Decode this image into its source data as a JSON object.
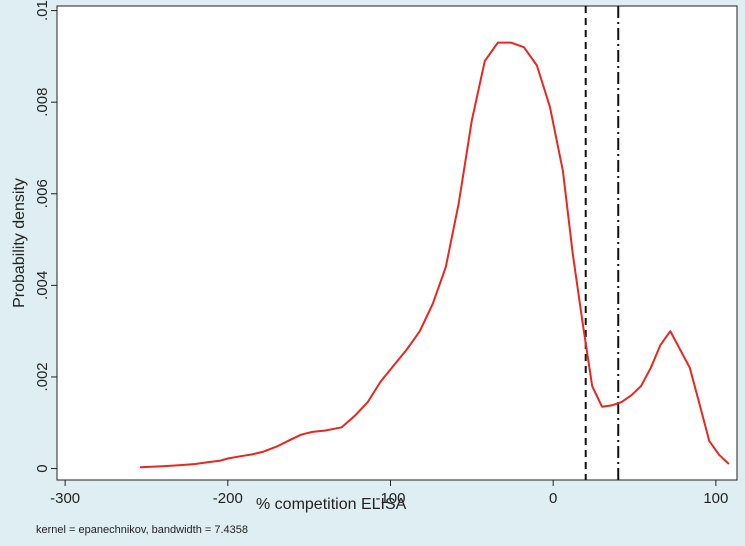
{
  "chart_data": {
    "type": "line",
    "xlabel": "% competition ELISA",
    "ylabel": "Probability density",
    "note": "kernel = epanechnikov, bandwidth = 7.4358",
    "xlim": [
      -305,
      113
    ],
    "ylim": [
      -0.00025,
      0.0101
    ],
    "xticks": [
      -300,
      -200,
      -100,
      0,
      100
    ],
    "xtick_labels": [
      "-300",
      "-200",
      "-100",
      "0",
      "100"
    ],
    "yticks": [
      0,
      0.002,
      0.004,
      0.006,
      0.008,
      0.01
    ],
    "ytick_labels": [
      "0",
      ".002",
      ".004",
      ".006",
      ".008",
      ".01"
    ],
    "grid": false,
    "series": [
      {
        "color": "#e8271f",
        "x": [
          -254,
          -240,
          -230,
          -220,
          -212,
          -205,
          -200,
          -192,
          -185,
          -178,
          -170,
          -162,
          -155,
          -148,
          -140,
          -130,
          -122,
          -114,
          -106,
          -98,
          -90,
          -82,
          -74,
          -66,
          -58,
          -50,
          -42,
          -34,
          -26,
          -18,
          -10,
          -2,
          6,
          12,
          18,
          24,
          30,
          36,
          42,
          48,
          54,
          60,
          66,
          72,
          78,
          84,
          90,
          96,
          102,
          108
        ],
        "y": [
          3e-05,
          5e-05,
          7e-05,
          0.0001,
          0.00014,
          0.00017,
          0.00022,
          0.00027,
          0.00031,
          0.00037,
          0.00048,
          0.00062,
          0.00074,
          0.0008,
          0.00083,
          0.0009,
          0.00115,
          0.00145,
          0.0019,
          0.00225,
          0.0026,
          0.003,
          0.0036,
          0.0044,
          0.0058,
          0.0076,
          0.0089,
          0.0093,
          0.0093,
          0.0092,
          0.0088,
          0.0079,
          0.0065,
          0.0047,
          0.0032,
          0.0018,
          0.00135,
          0.00138,
          0.00145,
          0.0016,
          0.0018,
          0.0022,
          0.0027,
          0.003,
          0.0026,
          0.0022,
          0.0014,
          0.0006,
          0.0003,
          0.0001
        ]
      }
    ],
    "reference_lines": [
      {
        "x": 20,
        "style": "dashed",
        "color": "#111111"
      },
      {
        "x": 40,
        "style": "dash-dot",
        "color": "#111111"
      }
    ]
  }
}
